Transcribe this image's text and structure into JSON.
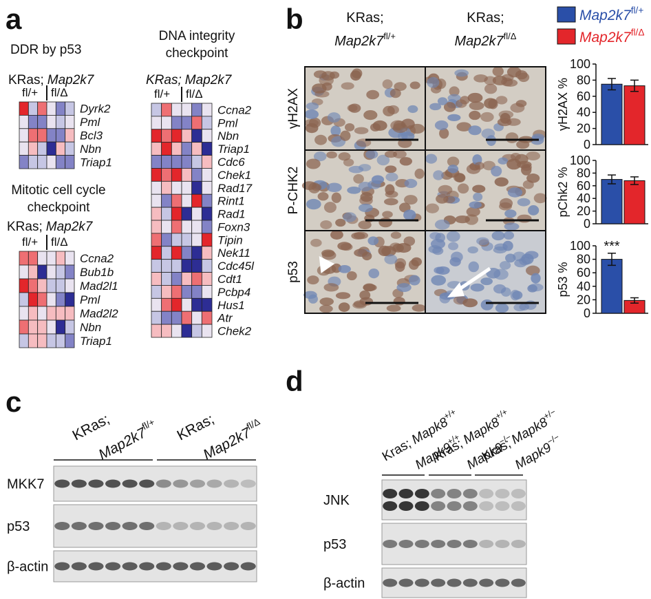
{
  "panels": {
    "a": {
      "label": "a",
      "ddr": {
        "title": [
          "DDR by p53"
        ],
        "genotype": {
          "strain": "KRas;",
          "gene": "Map2k7"
        },
        "columns": [
          "fl/+",
          "fl/Δ"
        ],
        "genes": [
          "Dyrk2",
          "Pml",
          "Bcl3",
          "Nbn",
          "Triap1"
        ]
      },
      "mitotic": {
        "title": [
          "Mitotic cell cycle",
          "checkpoint"
        ],
        "genotype": {
          "strain": "KRas;",
          "gene": "Map2k7"
        },
        "columns": [
          "fl/+",
          "fl/Δ"
        ],
        "genes": [
          "Ccna2",
          "Bub1b",
          "Mad2l1",
          "Pml",
          "Mad2l2",
          "Nbn",
          "Triap1"
        ]
      },
      "dna": {
        "title": [
          "DNA integrity",
          "checkpoint"
        ],
        "genotype": {
          "strain": "KRas;",
          "gene": "Map2k7"
        },
        "columns": [
          "fl/+",
          "fl/Δ"
        ],
        "genes": [
          "Ccna2",
          "Pml",
          "Nbn",
          "Triap1",
          "Cdc6",
          "Chek1",
          "Rad17",
          "Rint1",
          "Rad1",
          "Foxn3",
          "Tipin",
          "Nek11",
          "Cdc45l",
          "Cdt1",
          "Pcbp4",
          "Hus1",
          "Atr",
          "Chek2"
        ]
      }
    },
    "b": {
      "label": "b",
      "columns": [
        {
          "strain": "KRas;",
          "gene": "Map2k7",
          "sup": "fl/+"
        },
        {
          "strain": "KRas;",
          "gene": "Map2k7",
          "sup": "fl/Δ"
        }
      ],
      "rows": [
        "γH2AX",
        "P-CHK2",
        "p53"
      ]
    },
    "c": {
      "label": "c",
      "groups": [
        {
          "strain": "KRas;",
          "gene": "Map2k7",
          "sup": "fl/+"
        },
        {
          "strain": "KRas;",
          "gene": "Map2k7",
          "sup": "fl/Δ"
        }
      ],
      "blots": [
        "MKK7",
        "p53",
        "β-actin"
      ]
    },
    "d": {
      "label": "d",
      "groups": [
        {
          "strain": "Kras;",
          "gene1": "Mapk8",
          "sup1": "+/+",
          "gene2": "Mapk9",
          "sup2": "+/+"
        },
        {
          "strain": "Kras;",
          "gene1": "Mapk8",
          "sup1": "+/+",
          "gene2": "Mapk9",
          "sup2": "−/−"
        },
        {
          "strain": "Kras;",
          "gene1": "Mapk8",
          "sup1": "+/−",
          "gene2": "Mapk9",
          "sup2": "−/−"
        }
      ],
      "blots": [
        "JNK",
        "p53",
        "β-actin"
      ]
    }
  },
  "chart_data": [
    {
      "type": "bar",
      "ylabel": "γH2AX %",
      "ylim": [
        0,
        100
      ],
      "yticks": [
        0,
        20,
        40,
        60,
        80,
        100
      ],
      "series": [
        {
          "name": "Map2k7",
          "superscript": "fl/+",
          "color": "#2a4fa8",
          "values": [
            75
          ],
          "errors": [
            7
          ]
        },
        {
          "name": "Map2k7",
          "superscript": "fl/Δ",
          "color": "#e3262b",
          "values": [
            73
          ],
          "errors": [
            7
          ]
        }
      ]
    },
    {
      "type": "bar",
      "ylabel": "pChk2 %",
      "ylim": [
        0,
        100
      ],
      "yticks": [
        0,
        20,
        40,
        60,
        80,
        100
      ],
      "series": [
        {
          "color": "#2a4fa8",
          "values": [
            70
          ],
          "errors": [
            7
          ]
        },
        {
          "color": "#e3262b",
          "values": [
            68
          ],
          "errors": [
            6
          ]
        }
      ]
    },
    {
      "type": "bar",
      "ylabel": "p53 %",
      "ylim": [
        0,
        100
      ],
      "yticks": [
        0,
        20,
        40,
        60,
        80,
        100
      ],
      "annotation": "***",
      "series": [
        {
          "color": "#2a4fa8",
          "values": [
            80
          ],
          "errors": [
            9
          ]
        },
        {
          "color": "#e3262b",
          "values": [
            19
          ],
          "errors": [
            4
          ]
        }
      ]
    }
  ]
}
